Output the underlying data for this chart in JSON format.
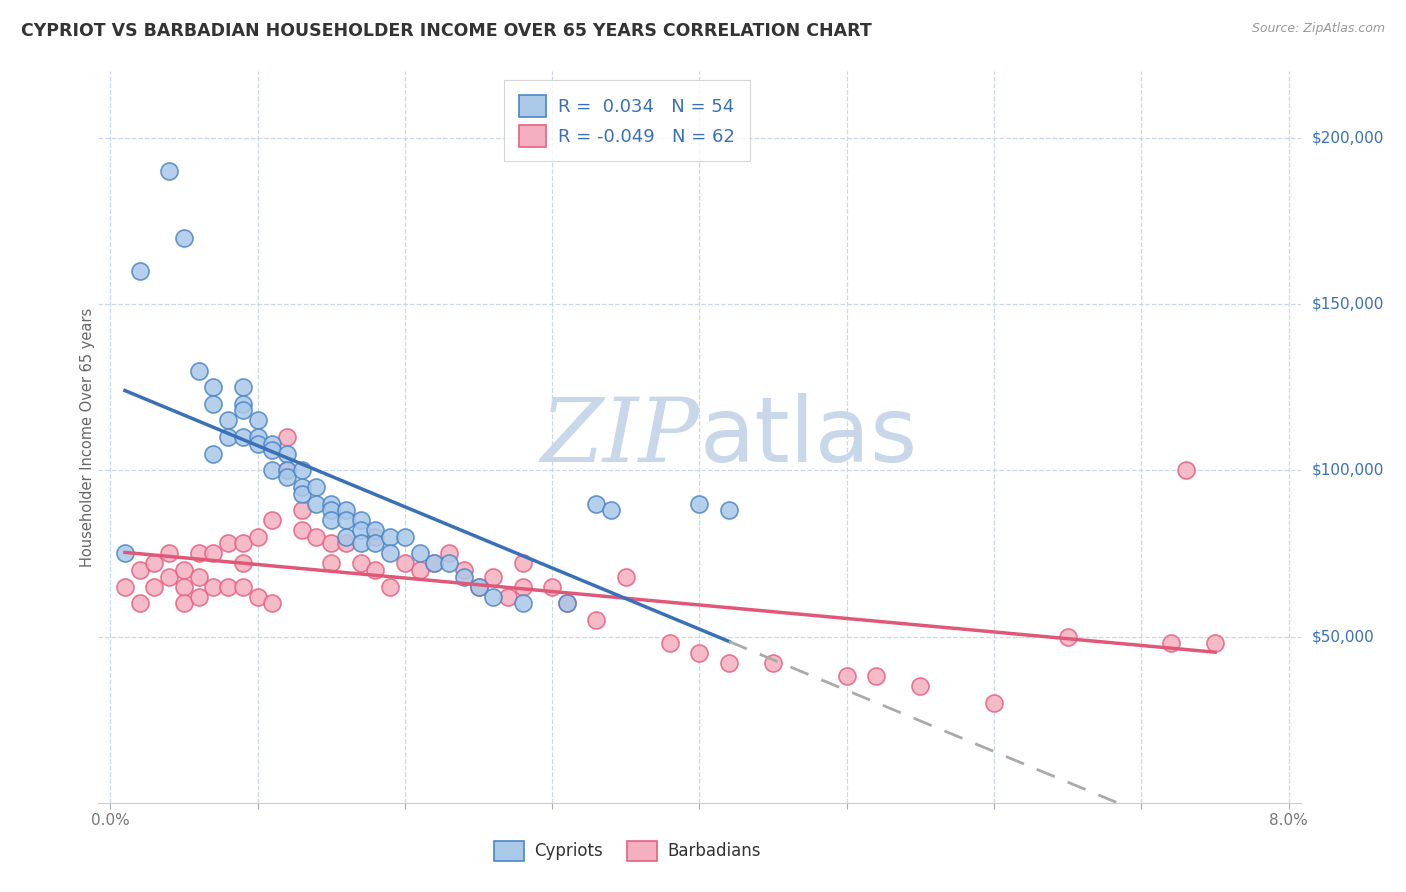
{
  "title": "CYPRIOT VS BARBADIAN HOUSEHOLDER INCOME OVER 65 YEARS CORRELATION CHART",
  "source": "Source: ZipAtlas.com",
  "ylabel": "Householder Income Over 65 years",
  "xlim": [
    -0.0008,
    0.0808
  ],
  "ylim": [
    0,
    220000
  ],
  "xtick_positions": [
    0.0,
    0.01,
    0.02,
    0.03,
    0.04,
    0.05,
    0.06,
    0.07,
    0.08
  ],
  "xtick_labels": [
    "0.0%",
    "",
    "",
    "",
    "",
    "",
    "",
    "",
    "8.0%"
  ],
  "yticks_right": [
    50000,
    100000,
    150000,
    200000
  ],
  "ytick_right_labels": [
    "$50,000",
    "$100,000",
    "$150,000",
    "$200,000"
  ],
  "legend_line1": "R =  0.034   N = 54",
  "legend_line2": "R = -0.049   N = 62",
  "legend_labels": [
    "Cypriots",
    "Barbadians"
  ],
  "cypriot_fill_color": "#aac8e8",
  "cypriot_edge_color": "#4a86c8",
  "barbadian_fill_color": "#f4b0c0",
  "barbadian_edge_color": "#e86080",
  "cypriot_line_color": "#3a70b8",
  "barbadian_line_color": "#e05878",
  "dashed_line_color": "#aaaaaa",
  "watermark_color": "#c8d8ea",
  "grid_color": "#c8d8ea",
  "bg_color": "#ffffff",
  "cypriot_x": [
    0.001,
    0.002,
    0.004,
    0.005,
    0.006,
    0.007,
    0.007,
    0.007,
    0.008,
    0.008,
    0.009,
    0.009,
    0.009,
    0.009,
    0.01,
    0.01,
    0.01,
    0.011,
    0.011,
    0.011,
    0.012,
    0.012,
    0.012,
    0.013,
    0.013,
    0.013,
    0.014,
    0.014,
    0.015,
    0.015,
    0.015,
    0.016,
    0.016,
    0.016,
    0.017,
    0.017,
    0.017,
    0.018,
    0.018,
    0.019,
    0.019,
    0.02,
    0.021,
    0.022,
    0.023,
    0.024,
    0.025,
    0.026,
    0.028,
    0.031,
    0.033,
    0.034,
    0.04,
    0.042
  ],
  "cypriot_y": [
    75000,
    160000,
    190000,
    170000,
    130000,
    125000,
    120000,
    105000,
    115000,
    110000,
    125000,
    120000,
    118000,
    110000,
    115000,
    110000,
    108000,
    108000,
    106000,
    100000,
    105000,
    100000,
    98000,
    100000,
    95000,
    93000,
    95000,
    90000,
    90000,
    88000,
    85000,
    88000,
    85000,
    80000,
    85000,
    82000,
    78000,
    82000,
    78000,
    80000,
    75000,
    80000,
    75000,
    72000,
    72000,
    68000,
    65000,
    62000,
    60000,
    60000,
    90000,
    88000,
    90000,
    88000
  ],
  "barbadian_x": [
    0.001,
    0.002,
    0.002,
    0.003,
    0.003,
    0.004,
    0.004,
    0.005,
    0.005,
    0.005,
    0.006,
    0.006,
    0.006,
    0.007,
    0.007,
    0.008,
    0.008,
    0.009,
    0.009,
    0.009,
    0.01,
    0.01,
    0.011,
    0.011,
    0.012,
    0.012,
    0.013,
    0.013,
    0.014,
    0.015,
    0.015,
    0.016,
    0.017,
    0.018,
    0.018,
    0.019,
    0.02,
    0.021,
    0.022,
    0.023,
    0.024,
    0.025,
    0.026,
    0.027,
    0.028,
    0.028,
    0.03,
    0.031,
    0.033,
    0.035,
    0.038,
    0.04,
    0.042,
    0.045,
    0.05,
    0.052,
    0.055,
    0.06,
    0.065,
    0.072,
    0.073,
    0.075
  ],
  "barbadian_y": [
    65000,
    70000,
    60000,
    72000,
    65000,
    75000,
    68000,
    70000,
    65000,
    60000,
    75000,
    68000,
    62000,
    75000,
    65000,
    78000,
    65000,
    78000,
    72000,
    65000,
    80000,
    62000,
    85000,
    60000,
    110000,
    100000,
    88000,
    82000,
    80000,
    78000,
    72000,
    78000,
    72000,
    80000,
    70000,
    65000,
    72000,
    70000,
    72000,
    75000,
    70000,
    65000,
    68000,
    62000,
    72000,
    65000,
    65000,
    60000,
    55000,
    68000,
    48000,
    45000,
    42000,
    42000,
    38000,
    38000,
    35000,
    30000,
    50000,
    48000,
    100000,
    48000
  ]
}
